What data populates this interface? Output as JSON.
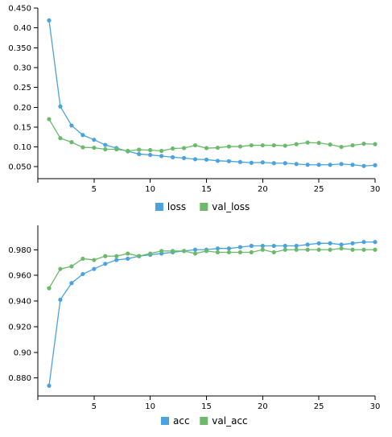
{
  "colors": {
    "loss": "#4aa3df",
    "val_loss": "#6aba6a",
    "acc": "#4aa3df",
    "val_acc": "#6aba6a"
  },
  "chart_data": [
    {
      "type": "line",
      "x": [
        1,
        2,
        3,
        4,
        5,
        6,
        7,
        8,
        9,
        10,
        11,
        12,
        13,
        14,
        15,
        16,
        17,
        18,
        19,
        20,
        21,
        22,
        23,
        24,
        25,
        26,
        27,
        28,
        29,
        30
      ],
      "xlim": [
        0,
        30
      ],
      "xticks": [
        5,
        10,
        15,
        20,
        25,
        30
      ],
      "ylim": [
        0.02,
        0.45
      ],
      "yticks": [
        0.05,
        0.1,
        0.15,
        0.2,
        0.25,
        0.3,
        0.35,
        0.4,
        0.45
      ],
      "ytick_labels": [
        "0.050",
        "0.10",
        "0.15",
        "0.20",
        "0.25",
        "0.30",
        "0.350",
        "0.40",
        "0.450"
      ],
      "legend_position": "bottom",
      "series": [
        {
          "name": "loss",
          "color_key": "loss",
          "values": [
            0.419,
            0.202,
            0.154,
            0.13,
            0.118,
            0.105,
            0.097,
            0.089,
            0.082,
            0.08,
            0.077,
            0.074,
            0.072,
            0.069,
            0.068,
            0.065,
            0.064,
            0.062,
            0.06,
            0.061,
            0.059,
            0.059,
            0.057,
            0.055,
            0.055,
            0.055,
            0.057,
            0.055,
            0.052,
            0.054
          ]
        },
        {
          "name": "val_loss",
          "color_key": "val_loss",
          "values": [
            0.17,
            0.122,
            0.112,
            0.099,
            0.098,
            0.094,
            0.094,
            0.09,
            0.093,
            0.092,
            0.09,
            0.096,
            0.097,
            0.104,
            0.097,
            0.098,
            0.101,
            0.101,
            0.104,
            0.104,
            0.104,
            0.103,
            0.107,
            0.111,
            0.11,
            0.106,
            0.1,
            0.104,
            0.108,
            0.107
          ]
        }
      ]
    },
    {
      "type": "line",
      "x": [
        1,
        2,
        3,
        4,
        5,
        6,
        7,
        8,
        9,
        10,
        11,
        12,
        13,
        14,
        15,
        16,
        17,
        18,
        19,
        20,
        21,
        22,
        23,
        24,
        25,
        26,
        27,
        28,
        29,
        30
      ],
      "xlim": [
        0,
        30
      ],
      "xticks": [
        5,
        10,
        15,
        20,
        25,
        30
      ],
      "ylim": [
        0.866,
        0.999
      ],
      "yticks": [
        0.88,
        0.9,
        0.92,
        0.94,
        0.96,
        0.98
      ],
      "ytick_labels": [
        "0.880",
        "0.90",
        "0.920",
        "0.940",
        "0.960",
        "0.980"
      ],
      "legend_position": "bottom",
      "series": [
        {
          "name": "acc",
          "color_key": "acc",
          "values": [
            0.874,
            0.941,
            0.954,
            0.961,
            0.965,
            0.969,
            0.972,
            0.973,
            0.975,
            0.976,
            0.977,
            0.978,
            0.979,
            0.98,
            0.98,
            0.981,
            0.981,
            0.982,
            0.983,
            0.983,
            0.983,
            0.983,
            0.983,
            0.984,
            0.985,
            0.985,
            0.984,
            0.985,
            0.986,
            0.986
          ]
        },
        {
          "name": "val_acc",
          "color_key": "val_acc",
          "values": [
            0.95,
            0.965,
            0.967,
            0.973,
            0.972,
            0.975,
            0.975,
            0.977,
            0.975,
            0.977,
            0.979,
            0.979,
            0.979,
            0.977,
            0.979,
            0.978,
            0.978,
            0.978,
            0.978,
            0.98,
            0.978,
            0.98,
            0.98,
            0.98,
            0.98,
            0.98,
            0.981,
            0.98,
            0.98,
            0.98
          ]
        }
      ]
    }
  ]
}
